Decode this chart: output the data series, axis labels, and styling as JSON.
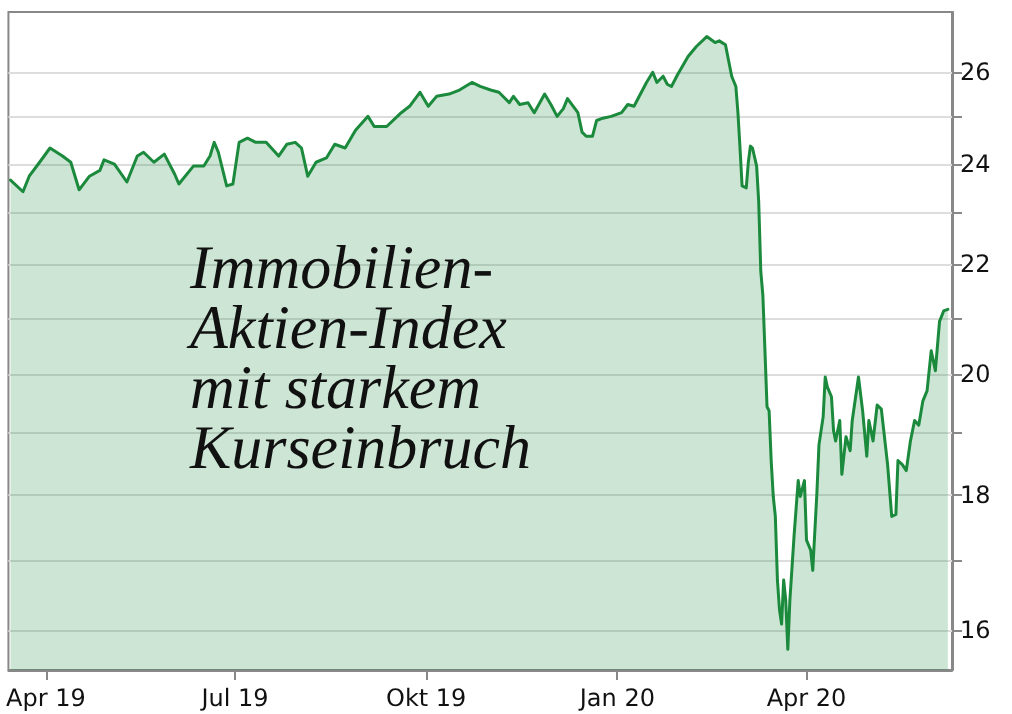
{
  "chart_data": {
    "type": "area",
    "annotations": [
      "Immobilien-\nAktien-Index\nmit starkem\nKurseinbruch"
    ],
    "x": [
      "2019-03-15",
      "2019-03-21",
      "2019-03-24",
      "2019-03-29",
      "2019-04-03",
      "2019-04-09",
      "2019-04-13",
      "2019-04-17",
      "2019-04-22",
      "2019-04-27",
      "2019-04-29",
      "2019-05-04",
      "2019-05-10",
      "2019-05-15",
      "2019-05-18",
      "2019-05-23",
      "2019-05-28",
      "2019-06-02",
      "2019-06-04",
      "2019-06-11",
      "2019-06-16",
      "2019-06-19",
      "2019-06-21",
      "2019-06-23",
      "2019-06-27",
      "2019-06-30",
      "2019-07-03",
      "2019-07-07",
      "2019-07-11",
      "2019-07-16",
      "2019-07-22",
      "2019-07-26",
      "2019-07-30",
      "2019-08-02",
      "2019-08-05",
      "2019-08-09",
      "2019-08-14",
      "2019-08-18",
      "2019-08-23",
      "2019-08-28",
      "2019-09-03",
      "2019-09-06",
      "2019-09-12",
      "2019-09-19",
      "2019-09-23",
      "2019-09-28",
      "2019-10-02",
      "2019-10-06",
      "2019-10-12",
      "2019-10-17",
      "2019-10-23",
      "2019-10-27",
      "2019-11-01",
      "2019-11-05",
      "2019-11-10",
      "2019-11-12",
      "2019-11-15",
      "2019-11-19",
      "2019-11-22",
      "2019-11-27",
      "2019-11-30",
      "2019-12-03",
      "2019-12-06",
      "2019-12-08",
      "2019-12-13",
      "2019-12-15",
      "2019-12-17",
      "2019-12-20",
      "2019-12-21",
      "2019-12-22",
      "2019-12-25",
      "2019-12-29",
      "2020-01-03",
      "2020-01-06",
      "2020-01-09",
      "2020-01-15",
      "2020-01-18",
      "2020-01-20",
      "2020-01-23",
      "2020-01-25",
      "2020-01-27",
      "2020-01-30",
      "2020-02-04",
      "2020-02-08",
      "2020-02-13",
      "2020-02-17",
      "2020-02-19",
      "2020-02-22",
      "2020-02-25",
      "2020-02-27",
      "2020-02-28",
      "2020-02-29",
      "2020-03-01",
      "2020-03-03",
      "2020-03-04",
      "2020-03-05",
      "2020-03-06",
      "2020-03-08",
      "2020-03-09",
      "2020-03-10",
      "2020-03-11",
      "2020-03-12",
      "2020-03-13",
      "2020-03-14",
      "2020-03-15",
      "2020-03-16",
      "2020-03-17",
      "2020-03-18",
      "2020-03-19",
      "2020-03-20",
      "2020-03-21",
      "2020-03-22",
      "2020-03-23",
      "2020-03-24",
      "2020-03-26",
      "2020-03-28",
      "2020-03-29",
      "2020-03-31",
      "2020-04-01",
      "2020-04-03",
      "2020-04-04",
      "2020-04-06",
      "2020-04-07",
      "2020-04-09",
      "2020-04-10",
      "2020-04-11",
      "2020-04-13",
      "2020-04-14",
      "2020-04-15",
      "2020-04-17",
      "2020-04-18",
      "2020-04-20",
      "2020-04-22",
      "2020-04-23",
      "2020-04-26",
      "2020-04-28",
      "2020-04-30",
      "2020-05-01",
      "2020-05-03",
      "2020-05-05",
      "2020-05-07",
      "2020-05-10",
      "2020-05-12",
      "2020-05-14",
      "2020-05-15",
      "2020-05-17",
      "2020-05-19",
      "2020-05-21",
      "2020-05-23",
      "2020-05-25",
      "2020-05-27",
      "2020-05-29",
      "2020-05-31",
      "2020-06-02",
      "2020-06-04",
      "2020-06-06",
      "2020-06-08"
    ],
    "series": [
      {
        "color": "#1b8a3c",
        "values": [
          23.67,
          23.43,
          23.75,
          24.04,
          24.34,
          24.17,
          24.04,
          23.47,
          23.75,
          23.87,
          24.09,
          24.0,
          23.63,
          24.17,
          24.25,
          24.04,
          24.21,
          23.79,
          23.59,
          23.96,
          23.96,
          24.17,
          24.46,
          24.25,
          23.55,
          23.59,
          24.46,
          24.55,
          24.46,
          24.46,
          24.17,
          24.42,
          24.46,
          24.34,
          23.75,
          24.04,
          24.13,
          24.42,
          24.34,
          24.72,
          25.02,
          24.8,
          24.8,
          25.1,
          25.24,
          25.55,
          25.24,
          25.46,
          25.51,
          25.6,
          25.77,
          25.68,
          25.6,
          25.55,
          25.32,
          25.46,
          25.28,
          25.32,
          25.1,
          25.51,
          25.28,
          25.02,
          25.19,
          25.41,
          25.1,
          24.68,
          24.59,
          24.59,
          24.76,
          24.93,
          24.98,
          25.02,
          25.1,
          25.28,
          25.24,
          25.77,
          26.0,
          25.77,
          25.91,
          25.73,
          25.68,
          25.95,
          26.36,
          26.59,
          26.82,
          26.68,
          26.72,
          26.63,
          25.91,
          25.68,
          25.1,
          24.34,
          23.55,
          23.51,
          24.04,
          24.38,
          24.34,
          23.96,
          23.22,
          21.86,
          21.41,
          20.4,
          19.43,
          19.36,
          18.54,
          17.97,
          17.66,
          16.71,
          16.28,
          16.08,
          16.71,
          16.42,
          15.73,
          16.42,
          17.36,
          18.22,
          17.97,
          18.22,
          17.3,
          17.15,
          16.85,
          18.03,
          18.8,
          19.26,
          19.94,
          19.77,
          19.6,
          19.03,
          18.86,
          19.2,
          18.32,
          18.93,
          18.7,
          19.2,
          19.94,
          19.36,
          18.61,
          19.2,
          18.86,
          19.46,
          19.39,
          18.48,
          17.66,
          17.69,
          18.54,
          18.48,
          18.38,
          18.86,
          19.2,
          19.12,
          19.53,
          19.7,
          20.4,
          20.05,
          20.93,
          21.12,
          21.15
        ]
      }
    ],
    "xlim": [
      "2019-03-14",
      "2020-06-10"
    ],
    "xticks": [
      {
        "value": "2019-04-01",
        "label": "Apr 19"
      },
      {
        "value": "2019-07-01",
        "label": "Jul 19"
      },
      {
        "value": "2019-10-01",
        "label": "Okt 19"
      },
      {
        "value": "2020-01-01",
        "label": "Jan 20"
      },
      {
        "value": "2020-04-01",
        "label": "Apr 20"
      }
    ],
    "ylim": [
      15.45,
      27.4
    ],
    "yticks": [
      16,
      {
        "value": 17,
        "label": null
      },
      18,
      {
        "value": 19,
        "label": null
      },
      20,
      {
        "value": 21,
        "label": null
      },
      22,
      {
        "value": 23,
        "label": null
      },
      24,
      {
        "value": 25,
        "label": null
      },
      26
    ],
    "log": "y",
    "grid": "y",
    "marker": "none",
    "line_style": "solid"
  }
}
